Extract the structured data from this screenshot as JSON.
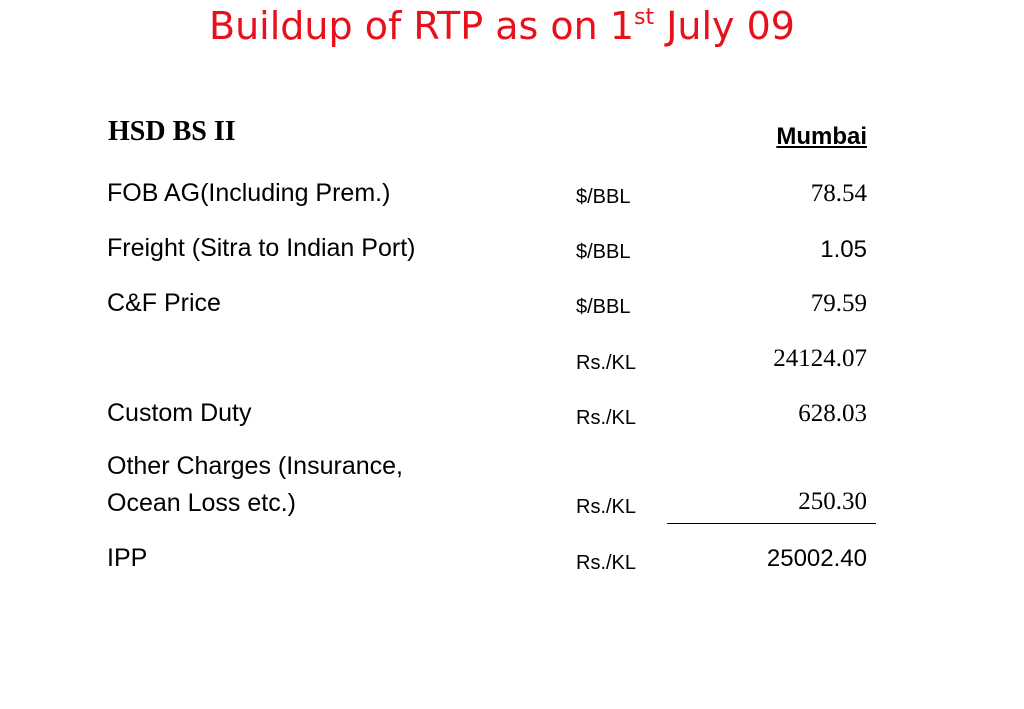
{
  "title": {
    "text_before": "Buildup of RTP as on 1",
    "superscript": "st",
    "text_after": " July 09",
    "color": "#e8101a"
  },
  "section_heading": "HSD BS II",
  "column_header": "Mumbai",
  "rows": [
    {
      "label": "FOB AG(Including Prem.)",
      "unit": "$/BBL",
      "value": "78.54"
    },
    {
      "label": "Freight (Sitra to Indian Port)",
      "unit": "$/BBL",
      "value": "1.05"
    },
    {
      "label": "C&F Price",
      "unit": "$/BBL",
      "value": "79.59"
    },
    {
      "label": "",
      "unit": "Rs./KL",
      "value": "24124.07"
    },
    {
      "label": "Custom Duty",
      "unit": "Rs./KL",
      "value": "628.03"
    },
    {
      "label_line1": "Other Charges (Insurance,",
      "label_line2": "Ocean Loss etc.)",
      "unit": "Rs./KL",
      "value": "250.30"
    },
    {
      "label": "IPP",
      "unit": "Rs./KL",
      "value": "25002.40"
    }
  ]
}
